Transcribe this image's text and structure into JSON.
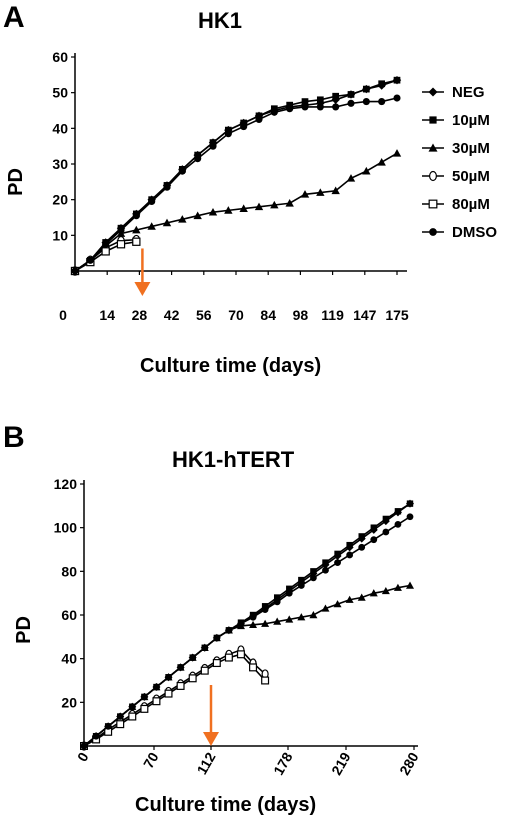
{
  "chart_data": [
    {
      "panel": "A",
      "type": "line",
      "title": "HK1",
      "xlabel": "Culture time (days)",
      "ylabel": "PD",
      "x_ticks": [
        "0",
        "14",
        "28",
        "42",
        "56",
        "70",
        "84",
        "98",
        "119",
        "147",
        "175"
      ],
      "highlight_tick": {
        "label": "28",
        "color": "#e0168a"
      },
      "y_ticks": [
        "10",
        "20",
        "30",
        "40",
        "50",
        "60"
      ],
      "ylim": [
        0,
        60
      ],
      "legend_position": "right",
      "arrow": {
        "at_x": "28",
        "color": "#f07020"
      },
      "series": [
        {
          "name": "NEG",
          "marker": "diamond",
          "values": [
            0,
            3,
            8,
            12,
            16,
            20,
            24,
            28.5,
            32.5,
            36,
            39.5,
            41.5,
            43.5,
            45,
            46,
            46.5,
            47,
            48,
            49.5,
            51,
            52,
            53.5
          ]
        },
        {
          "name": "10µM",
          "marker": "square",
          "values": [
            0,
            3,
            8,
            12,
            16,
            20,
            24,
            28.5,
            32.5,
            36,
            39.5,
            41.5,
            43.5,
            45.5,
            46.5,
            47.5,
            48,
            49,
            49.5,
            51,
            52.5,
            53.5
          ]
        },
        {
          "name": "30µM",
          "marker": "triangle",
          "values": [
            0,
            3,
            7,
            10.5,
            11.5,
            12.5,
            13.5,
            14.5,
            15.5,
            16.5,
            17,
            17.5,
            18,
            18.5,
            19,
            21.5,
            22,
            22.5,
            26,
            28,
            30.5,
            33
          ]
        },
        {
          "name": "50µM",
          "marker": "circle-open",
          "values": [
            0,
            3,
            6.5,
            8.5,
            8.8
          ]
        },
        {
          "name": "80µM",
          "marker": "square-open",
          "values": [
            0,
            2.5,
            5.5,
            7.5,
            8.2
          ]
        },
        {
          "name": "DMSO",
          "marker": "circle",
          "values": [
            0,
            3,
            7.5,
            11.5,
            15.5,
            19.5,
            23.5,
            28,
            31.5,
            35,
            38.5,
            40.5,
            42.5,
            44.5,
            45.5,
            46,
            46,
            46,
            47,
            47.5,
            47.5,
            48.5
          ]
        }
      ]
    },
    {
      "panel": "B",
      "type": "line",
      "title": "HK1-hTERT",
      "xlabel": "Culture time (days)",
      "ylabel": "PD",
      "x_ticks": [
        "0",
        "70",
        "112",
        "178",
        "219",
        "280"
      ],
      "highlight_tick": {
        "label": "112",
        "color": "#e03010"
      },
      "y_ticks": [
        "20",
        "40",
        "60",
        "80",
        "100",
        "120"
      ],
      "ylim": [
        0,
        120
      ],
      "arrow": {
        "at_x": "112",
        "color": "#f07020"
      },
      "series": [
        {
          "name": "NEG",
          "marker": "diamond",
          "values": [
            0,
            4.5,
            9,
            13.5,
            18,
            22.5,
            27,
            31.5,
            36,
            40.5,
            45,
            49.5,
            53,
            56,
            59.5,
            63,
            67,
            71,
            75,
            79,
            83,
            87,
            91,
            95,
            99,
            103,
            107,
            111
          ]
        },
        {
          "name": "10µM",
          "marker": "square",
          "values": [
            0,
            4.5,
            9,
            13.5,
            18,
            22.5,
            27,
            31.5,
            36,
            40.5,
            45,
            49.5,
            53,
            56.5,
            60,
            64,
            68,
            72,
            76,
            80,
            84,
            88,
            92,
            96,
            100,
            104,
            107.5,
            111
          ]
        },
        {
          "name": "30µM",
          "marker": "triangle",
          "values": [
            0,
            4.5,
            9,
            13.5,
            18,
            22.5,
            27,
            31.5,
            36,
            40.5,
            45,
            49.5,
            53,
            55,
            55.5,
            56,
            57,
            58,
            59,
            60,
            63,
            65,
            67,
            68,
            70,
            71,
            72.5,
            73.5
          ]
        },
        {
          "name": "50µM",
          "marker": "circle-open",
          "values": [
            0,
            3.5,
            7.5,
            11,
            14.5,
            18,
            21.5,
            25,
            28.5,
            32,
            35.5,
            39,
            42,
            44,
            38,
            33
          ]
        },
        {
          "name": "80µM",
          "marker": "square-open",
          "values": [
            0,
            3,
            6.5,
            10,
            13.5,
            17,
            20.5,
            24,
            27.5,
            31,
            34.5,
            38,
            40.5,
            42,
            36,
            30
          ]
        },
        {
          "name": "DMSO",
          "marker": "circle",
          "values": [
            0,
            4.5,
            9,
            13.5,
            18,
            22.5,
            27,
            31.5,
            36,
            40.5,
            45,
            49.5,
            53,
            56,
            59,
            62.5,
            66,
            70,
            73.5,
            77,
            80.5,
            84,
            87.5,
            91,
            94.5,
            98,
            101.5,
            105
          ]
        }
      ]
    }
  ]
}
